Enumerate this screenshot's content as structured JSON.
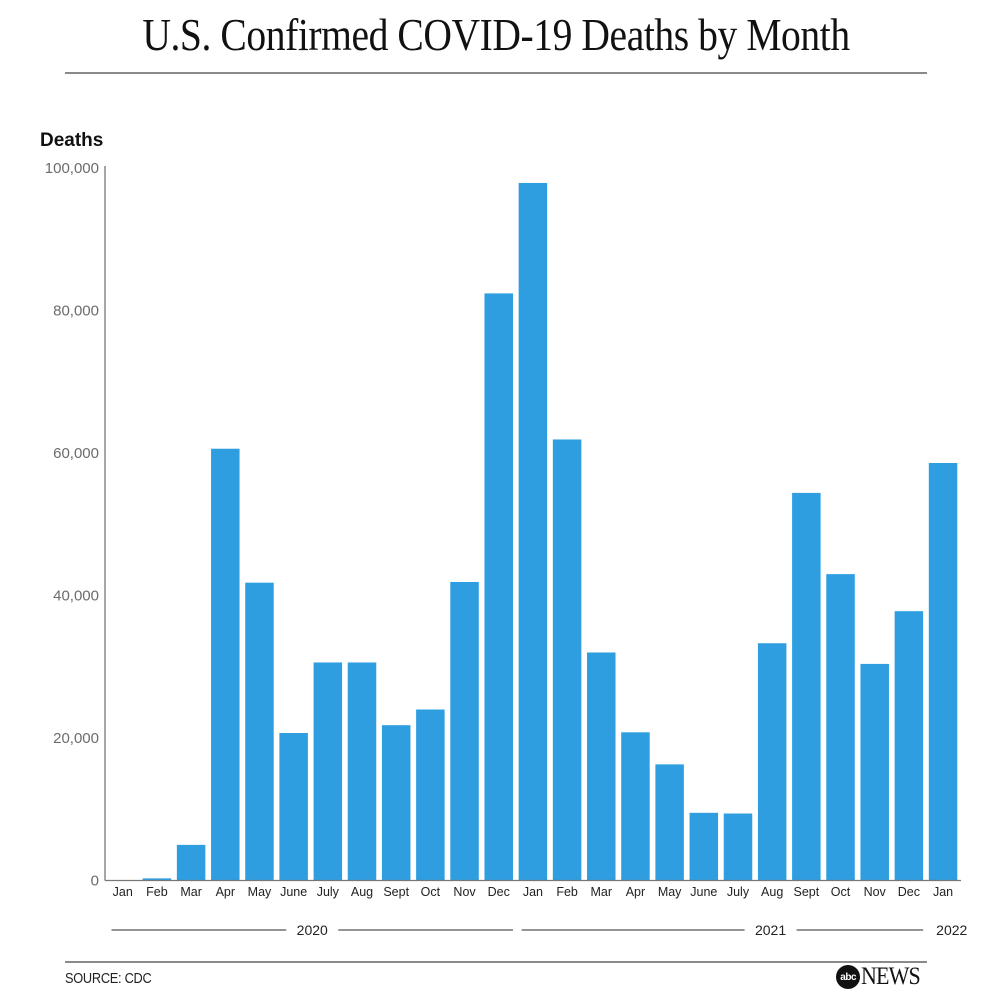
{
  "chart_data": {
    "type": "bar",
    "title": "U.S. Confirmed COVID-19 Deaths by Month",
    "xlabel": "",
    "ylabel": "Deaths",
    "ylim": [
      0,
      100000
    ],
    "yticks": [
      0,
      20000,
      40000,
      60000,
      80000,
      100000
    ],
    "ytick_labels": [
      "0",
      "20,000",
      "40,000",
      "60,000",
      "80,000",
      "100,000"
    ],
    "grid": false,
    "color": "#2e9ee0",
    "categories": [
      "Jan",
      "Feb",
      "Mar",
      "Apr",
      "May",
      "June",
      "July",
      "Aug",
      "Sept",
      "Oct",
      "Nov",
      "Dec",
      "Jan",
      "Feb",
      "Mar",
      "Apr",
      "May",
      "June",
      "July",
      "Aug",
      "Sept",
      "Oct",
      "Nov",
      "Dec",
      "Jan"
    ],
    "values": [
      0,
      300,
      5000,
      60600,
      41800,
      20700,
      30600,
      30600,
      21800,
      24000,
      41900,
      82400,
      97900,
      61900,
      32000,
      20800,
      16300,
      9500,
      9400,
      33300,
      54400,
      43000,
      30400,
      37800,
      58600
    ],
    "year_groups": [
      {
        "label": "2020",
        "start": 0,
        "end": 11
      },
      {
        "label": "2021",
        "start": 12,
        "end": 23
      },
      {
        "label": "2022",
        "start": 24,
        "end": 24
      }
    ]
  },
  "footer": {
    "source": "SOURCE: CDC",
    "logo_abc": "abc",
    "logo_news": "NEWS"
  }
}
